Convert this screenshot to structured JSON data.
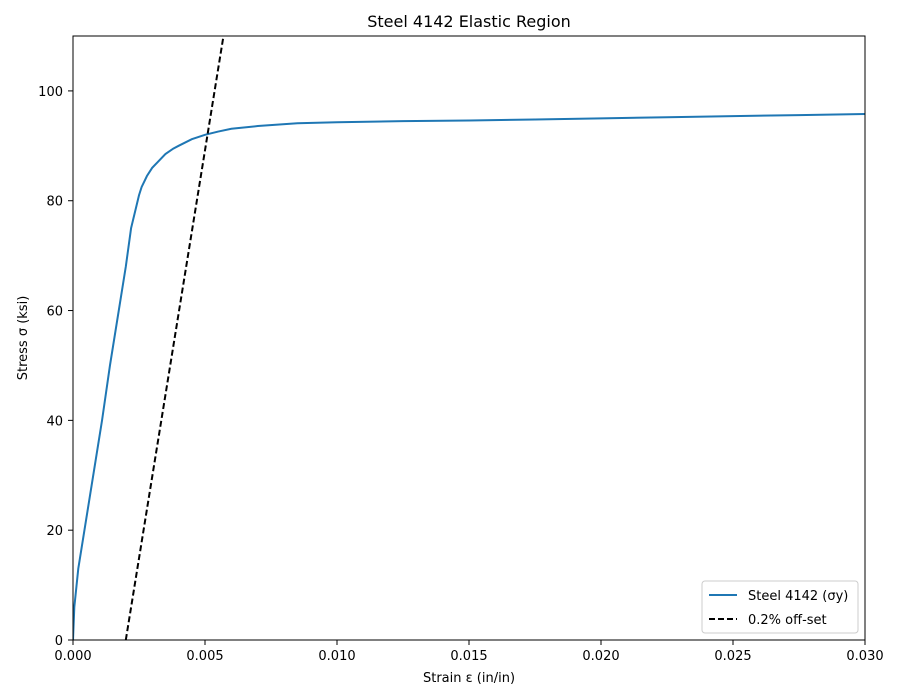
{
  "chart_data": {
    "type": "line",
    "title": "Steel 4142 Elastic Region",
    "xlabel": "Strain ε (in/in)",
    "ylabel": "Stress σ (ksi)",
    "xlim": [
      0,
      0.03
    ],
    "ylim": [
      0,
      110
    ],
    "xticks": [
      0,
      0.005,
      0.01,
      0.015,
      0.02,
      0.025,
      0.03
    ],
    "xtick_labels": [
      "0.000",
      "0.005",
      "0.010",
      "0.015",
      "0.020",
      "0.025",
      "0.030"
    ],
    "yticks": [
      0,
      20,
      40,
      60,
      80,
      100
    ],
    "ytick_labels": [
      "0",
      "20",
      "40",
      "60",
      "80",
      "100"
    ],
    "grid": false,
    "legend_position": "lower-right",
    "series": [
      {
        "name": "Steel 4142 (σy)",
        "color": "#1f77b4",
        "style": "solid",
        "x": [
          0,
          5e-05,
          0.0002,
          0.0005,
          0.0008,
          0.0011,
          0.0014,
          0.0017,
          0.002,
          0.0022,
          0.0024,
          0.0025,
          0.0026,
          0.0027,
          0.0028,
          0.003,
          0.0032,
          0.0035,
          0.0038,
          0.004,
          0.0045,
          0.005,
          0.0055,
          0.006,
          0.007,
          0.0085,
          0.01,
          0.0125,
          0.015,
          0.0175,
          0.02,
          0.0225,
          0.025,
          0.0275,
          0.03
        ],
        "y": [
          0,
          6,
          13,
          22,
          31,
          40,
          50,
          59,
          68,
          75,
          79,
          81,
          82.5,
          83.5,
          84.5,
          86,
          87,
          88.5,
          89.5,
          90,
          91.2,
          92,
          92.6,
          93.1,
          93.6,
          94.1,
          94.3,
          94.5,
          94.6,
          94.8,
          95,
          95.2,
          95.4,
          95.6,
          95.8
        ]
      },
      {
        "name": "0.2% off-set",
        "color": "#000000",
        "style": "dashed",
        "x": [
          0.002,
          0.0057
        ],
        "y": [
          0,
          110
        ]
      }
    ]
  }
}
